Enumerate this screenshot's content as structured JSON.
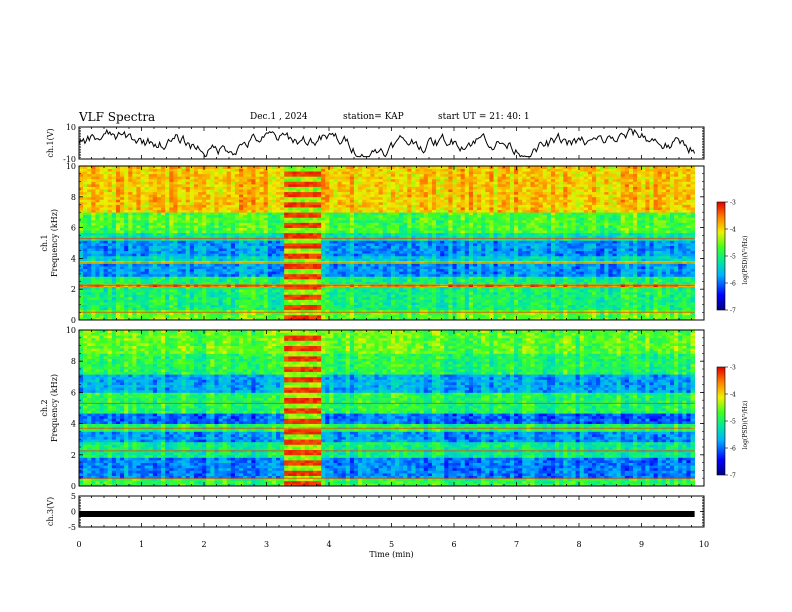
{
  "header": {
    "title": "VLF Spectra",
    "date": "Dec.1 , 2024",
    "station": "station= KAP",
    "start": "start UT = 21: 40: 1"
  },
  "chart_data": [
    {
      "type": "line",
      "panel": "ch1-waveform",
      "ylabel": "ch.1(V)",
      "ylim": [
        -10,
        10
      ],
      "yticks": [
        "10",
        "-10"
      ],
      "x_range_min": [
        0,
        10
      ],
      "note_series": "noisy waveform oscillating between about -8 and 9 V over 0–9.8 min"
    },
    {
      "type": "heatmap",
      "panel": "ch1-spectrogram",
      "ylabel_1": "ch.1",
      "ylabel_2": "Frequency (kHz)",
      "ylim": [
        0,
        10
      ],
      "yticks": [
        "0",
        "2",
        "4",
        "6",
        "8",
        "10"
      ],
      "colorbar": {
        "label": "log(PSD)(V²/Hz)",
        "ticks": [
          "-3",
          "-4",
          "-5",
          "-6",
          "-7"
        ],
        "range": [
          -7,
          -3
        ]
      },
      "bands_khz": [
        {
          "from": 0,
          "to": 0.6,
          "level": -4.6
        },
        {
          "from": 0.6,
          "to": 2.1,
          "level": -5.0
        },
        {
          "from": 2.1,
          "to": 2.4,
          "level": -3.5
        },
        {
          "from": 2.4,
          "to": 2.8,
          "level": -5.0
        },
        {
          "from": 2.8,
          "to": 3.6,
          "level": -5.8
        },
        {
          "from": 3.6,
          "to": 3.9,
          "level": -4.4
        },
        {
          "from": 3.9,
          "to": 4.2,
          "level": -5.4
        },
        {
          "from": 4.2,
          "to": 5.2,
          "level": -5.8
        },
        {
          "from": 5.2,
          "to": 5.6,
          "level": -5.2
        },
        {
          "from": 5.6,
          "to": 7.0,
          "level": -4.7
        },
        {
          "from": 7.0,
          "to": 10.0,
          "level": -3.9
        }
      ],
      "burst_min": [
        3.3,
        3.85
      ]
    },
    {
      "type": "heatmap",
      "panel": "ch2-spectrogram",
      "ylabel_1": "ch.2",
      "ylabel_2": "Frequency (kHz)",
      "ylim": [
        0,
        10
      ],
      "yticks": [
        "0",
        "2",
        "4",
        "6",
        "8",
        "10"
      ],
      "colorbar": {
        "label": "log(PSD)(V²/Hz)",
        "ticks": [
          "-3",
          "-4",
          "-5",
          "-6",
          "-7"
        ],
        "range": [
          -7,
          -3
        ]
      },
      "bands_khz": [
        {
          "from": 0,
          "to": 0.5,
          "level": -4.8
        },
        {
          "from": 0.5,
          "to": 1.8,
          "level": -5.9
        },
        {
          "from": 1.8,
          "to": 2.8,
          "level": -5.1
        },
        {
          "from": 2.8,
          "to": 3.5,
          "level": -5.8
        },
        {
          "from": 3.5,
          "to": 4.0,
          "level": -4.9
        },
        {
          "from": 4.0,
          "to": 4.7,
          "level": -6.0
        },
        {
          "from": 4.7,
          "to": 6.0,
          "level": -4.9
        },
        {
          "from": 6.0,
          "to": 7.2,
          "level": -5.7
        },
        {
          "from": 7.2,
          "to": 8.5,
          "level": -4.9
        },
        {
          "from": 8.5,
          "to": 10.0,
          "level": -4.6
        }
      ],
      "burst_min": [
        3.3,
        3.85
      ]
    },
    {
      "type": "line",
      "panel": "ch3-waveform",
      "ylabel": "ch.3(V)",
      "ylim": [
        -5,
        5
      ],
      "yticks": [
        "5",
        "0",
        "-5"
      ],
      "value": -0.8
    }
  ],
  "xaxis": {
    "label": "Time (min)",
    "range": [
      0,
      10
    ],
    "ticks": [
      "0",
      "1",
      "2",
      "3",
      "4",
      "5",
      "6",
      "7",
      "8",
      "9",
      "10"
    ]
  }
}
